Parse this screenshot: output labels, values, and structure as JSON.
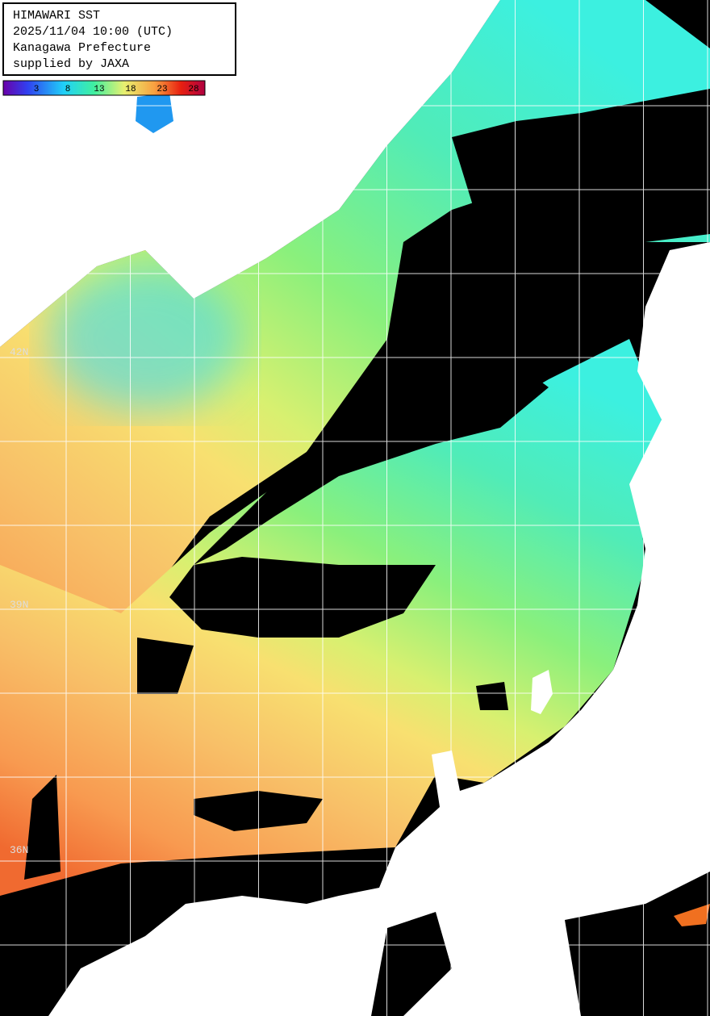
{
  "header": {
    "lines": [
      "HIMAWARI SST",
      "2025/11/04 10:00 (UTC)",
      "Kanagawa Prefecture",
      "supplied by JAXA"
    ]
  },
  "colorbar": {
    "labels": [
      3,
      8,
      13,
      18,
      23,
      28
    ]
  },
  "latitude_labels": [
    "42N",
    "39N",
    "36N"
  ]
}
